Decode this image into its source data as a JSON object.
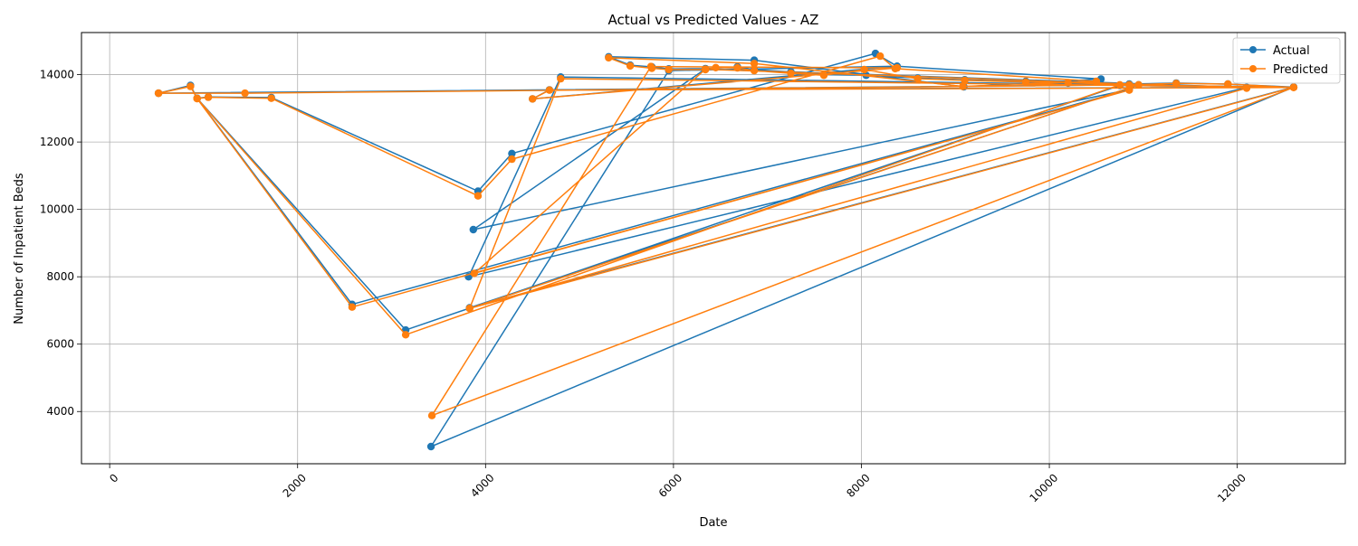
{
  "chart_data": {
    "type": "line",
    "title": "Actual vs Predicted Values - AZ",
    "xlabel": "Date",
    "ylabel": "Number of Inpatient Beds",
    "xlim": [
      -300,
      13150
    ],
    "ylim": [
      2450,
      15250
    ],
    "xticks": [
      0,
      2000,
      4000,
      6000,
      8000,
      10000,
      12000
    ],
    "yticks": [
      4000,
      6000,
      8000,
      10000,
      12000,
      14000
    ],
    "grid": true,
    "legend_position": "top-right",
    "series": [
      {
        "name": "Actual",
        "color": "#1f77b4",
        "marker": "circle",
        "points": [
          [
            520,
            13450
          ],
          [
            860,
            13680
          ],
          [
            930,
            13300
          ],
          [
            1050,
            13340
          ],
          [
            1720,
            13320
          ],
          [
            3920,
            10540
          ],
          [
            4280,
            11660
          ],
          [
            8150,
            14630
          ],
          [
            8380,
            14250
          ],
          [
            10550,
            13870
          ],
          [
            9090,
            13640
          ],
          [
            6860,
            14430
          ],
          [
            5310,
            14530
          ],
          [
            5540,
            14280
          ],
          [
            5770,
            14230
          ],
          [
            5950,
            14170
          ],
          [
            6340,
            14180
          ],
          [
            6680,
            14230
          ],
          [
            6860,
            14150
          ],
          [
            7250,
            14080
          ],
          [
            7600,
            14000
          ],
          [
            8050,
            13980
          ],
          [
            8600,
            13900
          ],
          [
            9100,
            13850
          ],
          [
            9750,
            13800
          ],
          [
            10200,
            13750
          ],
          [
            10850,
            13720
          ],
          [
            11350,
            13750
          ],
          [
            11900,
            13720
          ],
          [
            12600,
            13630
          ],
          [
            10750,
            13680
          ],
          [
            3150,
            6420
          ],
          [
            930,
            13300
          ],
          [
            2580,
            7180
          ],
          [
            10850,
            13560
          ],
          [
            3870,
            9400
          ],
          [
            6340,
            14170
          ],
          [
            12100,
            13620
          ],
          [
            3820,
            8000
          ],
          [
            4800,
            13930
          ],
          [
            12600,
            13630
          ],
          [
            3420,
            2960
          ],
          [
            5950,
            14120
          ],
          [
            8380,
            14250
          ],
          [
            4500,
            13280
          ],
          [
            4680,
            13550
          ],
          [
            12600,
            13630
          ],
          [
            3830,
            7080
          ],
          [
            10950,
            13700
          ],
          [
            520,
            13450
          ]
        ]
      },
      {
        "name": "Predicted",
        "color": "#ff7f0e",
        "marker": "circle",
        "points": [
          [
            520,
            13450
          ],
          [
            860,
            13650
          ],
          [
            930,
            13290
          ],
          [
            1050,
            13330
          ],
          [
            1720,
            13300
          ],
          [
            3920,
            10400
          ],
          [
            4280,
            11490
          ],
          [
            8200,
            14550
          ],
          [
            8360,
            14180
          ],
          [
            10500,
            13800
          ],
          [
            9080,
            13650
          ],
          [
            6860,
            14330
          ],
          [
            5310,
            14500
          ],
          [
            5540,
            14260
          ],
          [
            5770,
            14190
          ],
          [
            5950,
            14150
          ],
          [
            6340,
            14150
          ],
          [
            6450,
            14210
          ],
          [
            6680,
            14200
          ],
          [
            6860,
            14120
          ],
          [
            7250,
            14040
          ],
          [
            7600,
            13980
          ],
          [
            8030,
            14150
          ],
          [
            8600,
            13880
          ],
          [
            9100,
            13830
          ],
          [
            9750,
            13780
          ],
          [
            10200,
            13760
          ],
          [
            10850,
            13700
          ],
          [
            11350,
            13740
          ],
          [
            11900,
            13720
          ],
          [
            12600,
            13620
          ],
          [
            10750,
            13700
          ],
          [
            3150,
            6280
          ],
          [
            930,
            13290
          ],
          [
            2580,
            7100
          ],
          [
            10850,
            13540
          ],
          [
            3880,
            8100
          ],
          [
            6340,
            14160
          ],
          [
            12100,
            13600
          ],
          [
            3830,
            7060
          ],
          [
            4800,
            13880
          ],
          [
            12600,
            13620
          ],
          [
            3430,
            3880
          ],
          [
            5760,
            14240
          ],
          [
            8380,
            14200
          ],
          [
            4500,
            13280
          ],
          [
            4680,
            13540
          ],
          [
            12600,
            13620
          ],
          [
            3830,
            7060
          ],
          [
            10950,
            13700
          ],
          [
            1440,
            13450
          ],
          [
            520,
            13450
          ]
        ]
      }
    ]
  }
}
